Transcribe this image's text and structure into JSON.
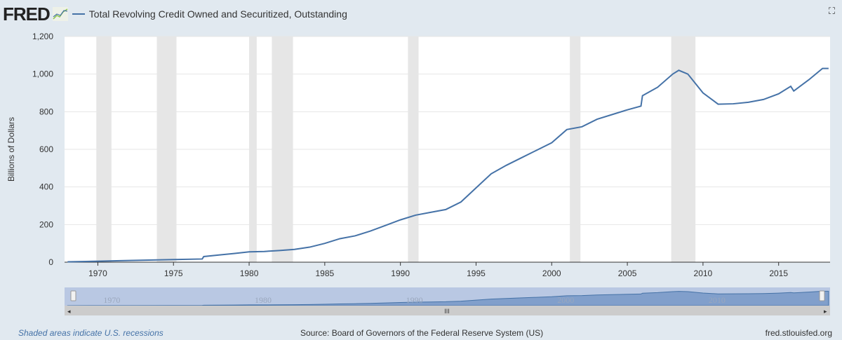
{
  "header": {
    "logo": "FRED",
    "title": "Total Revolving Credit Owned and Securitized, Outstanding",
    "fullscreen_icon": "expand-icon"
  },
  "footer": {
    "note": "Shaded areas indicate U.S. recessions",
    "source": "Source: Board of Governors of the Federal Reserve System (US)",
    "site": "fred.stlouisfed.org"
  },
  "colors": {
    "line": "#4572a7",
    "recession": "#e6e6e6",
    "navigator": "#b9c8e3"
  },
  "chart_data": {
    "type": "line",
    "title": "Total Revolving Credit Owned and Securitized, Outstanding",
    "ylabel": "Billions of Dollars",
    "xlim": [
      1967.8,
      2018.4
    ],
    "ylim": [
      0,
      1200
    ],
    "yticks": [
      0,
      200,
      400,
      600,
      800,
      1000,
      1200
    ],
    "ytick_labels": [
      "0",
      "200",
      "400",
      "600",
      "800",
      "1,000",
      "1,200"
    ],
    "xticks": [
      1970,
      1975,
      1980,
      1985,
      1990,
      1995,
      2000,
      2005,
      2010,
      2015
    ],
    "navigator_ticks": [
      1970,
      1980,
      1990,
      2000,
      2010
    ],
    "grid": true,
    "recessions": [
      [
        1969.9,
        1970.9
      ],
      [
        1973.9,
        1975.2
      ],
      [
        1980.0,
        1980.5
      ],
      [
        1981.5,
        1982.9
      ],
      [
        1990.5,
        1991.2
      ],
      [
        2001.2,
        2001.9
      ],
      [
        2007.9,
        2009.5
      ]
    ],
    "series": [
      {
        "x": [
          1968,
          1970,
          1972,
          1975,
          1976.9,
          1977,
          1978,
          1979,
          1980,
          1981,
          1982,
          1983,
          1984,
          1985,
          1986,
          1987,
          1988,
          1989,
          1990,
          1991,
          1992,
          1993,
          1994,
          1995,
          1996,
          1997,
          1998,
          1999,
          2000,
          2001,
          2002,
          2003,
          2004,
          2005,
          2005.9,
          2006,
          2007,
          2008,
          2008.4,
          2009,
          2010,
          2011,
          2012,
          2013,
          2014,
          2015,
          2015.8,
          2016,
          2017,
          2017.9,
          2018.3
        ],
        "y": [
          2,
          5,
          9,
          14,
          17,
          30,
          38,
          46,
          55,
          57,
          62,
          68,
          80,
          100,
          125,
          140,
          165,
          195,
          225,
          250,
          265,
          280,
          320,
          395,
          470,
          515,
          555,
          595,
          635,
          705,
          720,
          760,
          785,
          810,
          830,
          885,
          930,
          1000,
          1020,
          1000,
          900,
          840,
          842,
          850,
          865,
          895,
          935,
          910,
          970,
          1030,
          1030
        ]
      }
    ]
  }
}
